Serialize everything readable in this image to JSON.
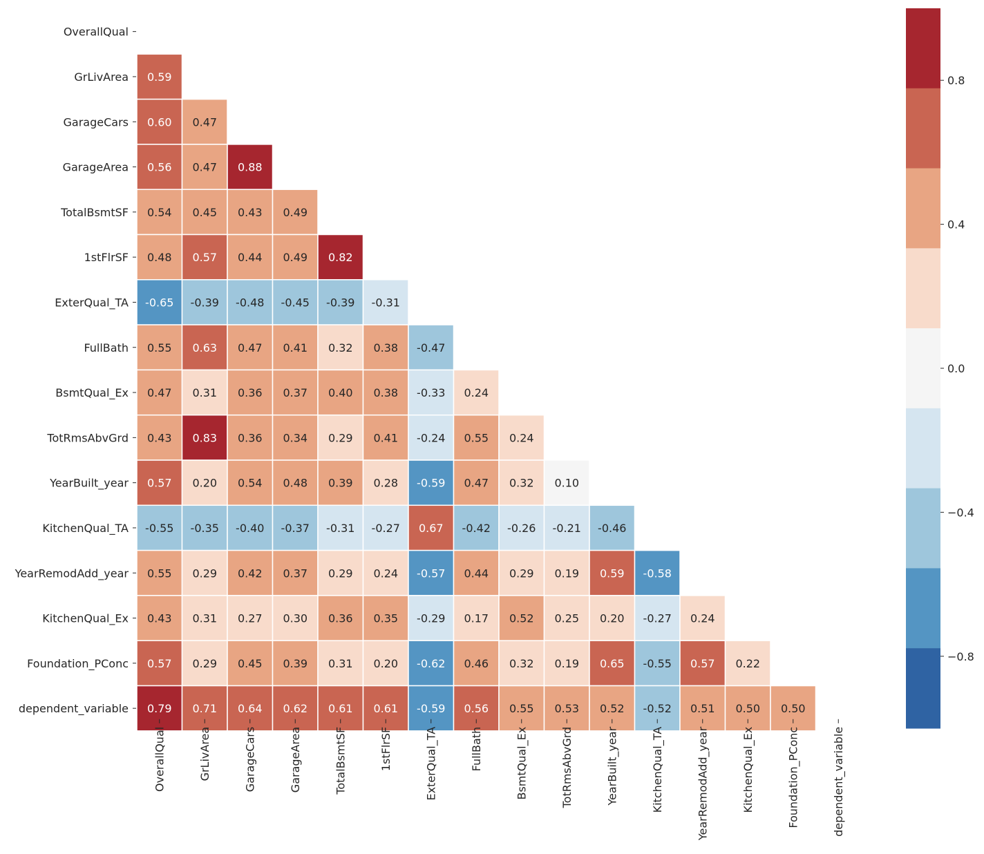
{
  "chart_data": {
    "type": "heatmap",
    "title": "",
    "labels": [
      "OverallQual",
      "GrLivArea",
      "GarageCars",
      "GarageArea",
      "TotalBsmtSF",
      "1stFlrSF",
      "ExterQual_TA",
      "FullBath",
      "BsmtQual_Ex",
      "TotRmsAbvGrd",
      "YearBuilt_year",
      "KitchenQual_TA",
      "YearRemodAdd_year",
      "KitchenQual_Ex",
      "Foundation_PConc",
      "dependent_variable"
    ],
    "mask": "upper triangle incl. diagonal",
    "matrix": [
      [],
      [
        0.59
      ],
      [
        0.6,
        0.47
      ],
      [
        0.56,
        0.47,
        0.88
      ],
      [
        0.54,
        0.45,
        0.43,
        0.49
      ],
      [
        0.48,
        0.57,
        0.44,
        0.49,
        0.82
      ],
      [
        -0.65,
        -0.39,
        -0.48,
        -0.45,
        -0.39,
        -0.31
      ],
      [
        0.55,
        0.63,
        0.47,
        0.41,
        0.32,
        0.38,
        -0.47
      ],
      [
        0.47,
        0.31,
        0.36,
        0.37,
        0.4,
        0.38,
        -0.33,
        0.24
      ],
      [
        0.43,
        0.83,
        0.36,
        0.34,
        0.29,
        0.41,
        -0.24,
        0.55,
        0.24
      ],
      [
        0.57,
        0.2,
        0.54,
        0.48,
        0.39,
        0.28,
        -0.59,
        0.47,
        0.32,
        0.1
      ],
      [
        -0.55,
        -0.35,
        -0.4,
        -0.37,
        -0.31,
        -0.27,
        0.67,
        -0.42,
        -0.26,
        -0.21,
        -0.46
      ],
      [
        0.55,
        0.29,
        0.42,
        0.37,
        0.29,
        0.24,
        -0.57,
        0.44,
        0.29,
        0.19,
        0.59,
        -0.58
      ],
      [
        0.43,
        0.31,
        0.27,
        0.3,
        0.36,
        0.35,
        -0.29,
        0.17,
        0.52,
        0.25,
        0.2,
        -0.27,
        0.24
      ],
      [
        0.57,
        0.29,
        0.45,
        0.39,
        0.31,
        0.2,
        -0.62,
        0.46,
        0.32,
        0.19,
        0.65,
        -0.55,
        0.57,
        0.22
      ],
      [
        0.79,
        0.71,
        0.64,
        0.62,
        0.61,
        0.61,
        -0.59,
        0.56,
        0.55,
        0.53,
        0.52,
        -0.52,
        0.51,
        0.5,
        0.5
      ]
    ],
    "vmin": -1,
    "vmax": 1,
    "colorbar": {
      "ticks": [
        0.8,
        0.4,
        0.0,
        -0.4,
        -0.8
      ],
      "tick_labels": [
        "0.8",
        "0.4",
        "0.0",
        "−0.4",
        "−0.8"
      ],
      "bins": [
        {
          "min": 0.7143,
          "max": 1.0,
          "color": "#a6262f"
        },
        {
          "min": 0.4286,
          "max": 0.7143,
          "color": "#c96552"
        },
        {
          "min": 0.1429,
          "max": 0.4286,
          "color": "#e8a583"
        },
        {
          "min": -0.1429,
          "max": 0.1429,
          "color": "#f8dbcb"
        },
        {
          "min": -0.4286,
          "max": -0.1429,
          "color": "#f5f5f5"
        },
        {
          "min": -0.7143,
          "max": -0.4286,
          "color": "#d5e5f0"
        },
        {
          "min": -1.0,
          "max": -0.7143,
          "color": "#9ec6dc"
        }
      ],
      "display_bins": [
        "#a6262f",
        "#c96552",
        "#e8a583",
        "#f8dbcb",
        "#f5f5f5",
        "#d5e5f0",
        "#9ec6dc",
        "#5495c3",
        "#2f63a3"
      ]
    }
  }
}
